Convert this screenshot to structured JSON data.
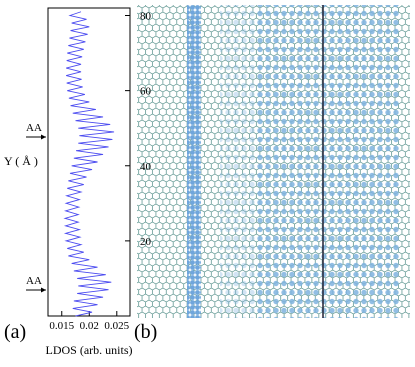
{
  "chart_data": {
    "type": "line",
    "orientation": "horizontal-values",
    "xlabel": "LDOS (arb. units)",
    "ylabel": "Y ( Å )",
    "annotations": [
      "AA",
      "AA"
    ],
    "panel_labels": [
      "(a)",
      "(b)"
    ],
    "xlim": [
      0.0125,
      0.0274
    ],
    "xticks": [
      0.015,
      0.02,
      0.025
    ],
    "ylim": [
      0,
      82
    ],
    "yticks": [
      20,
      40,
      60,
      80
    ],
    "y": [
      0,
      1,
      2,
      3,
      4,
      5,
      6,
      7,
      8,
      9,
      10,
      11,
      12,
      13,
      14,
      15,
      16,
      17,
      18,
      19,
      20,
      21,
      22,
      23,
      24,
      25,
      26,
      27,
      28,
      29,
      30,
      31,
      32,
      33,
      34,
      35,
      36,
      37,
      38,
      39,
      40,
      41,
      42,
      43,
      44,
      45,
      46,
      47,
      48,
      49,
      50,
      51,
      52,
      53,
      54,
      55,
      56,
      57,
      58,
      59,
      60,
      61,
      62,
      63,
      64,
      65,
      66,
      67,
      68,
      69,
      70,
      71,
      72,
      73,
      74,
      75,
      76,
      77,
      78,
      79,
      80,
      81
    ],
    "series": [
      {
        "color": "#4b4bf0",
        "values": [
          0.0175,
          0.0205,
          0.017,
          0.0215,
          0.0172,
          0.0225,
          0.0178,
          0.0235,
          0.018,
          0.024,
          0.0178,
          0.023,
          0.0172,
          0.0215,
          0.0168,
          0.02,
          0.0162,
          0.019,
          0.016,
          0.0185,
          0.0158,
          0.0183,
          0.0157,
          0.0182,
          0.0157,
          0.018,
          0.0156,
          0.018,
          0.0157,
          0.0181,
          0.0158,
          0.0182,
          0.0159,
          0.0185,
          0.016,
          0.019,
          0.0162,
          0.0195,
          0.0165,
          0.0205,
          0.0168,
          0.0215,
          0.0172,
          0.0225,
          0.0176,
          0.0235,
          0.018,
          0.0242,
          0.0182,
          0.0245,
          0.018,
          0.0238,
          0.0175,
          0.0225,
          0.017,
          0.0212,
          0.0166,
          0.02,
          0.0163,
          0.0192,
          0.016,
          0.0188,
          0.0159,
          0.0186,
          0.0158,
          0.0185,
          0.0158,
          0.0185,
          0.0159,
          0.0187,
          0.016,
          0.019,
          0.0162,
          0.0193,
          0.0164,
          0.0197,
          0.0166,
          0.02,
          0.0168,
          0.0195,
          0.0165,
          0.0185
        ]
      }
    ]
  }
}
